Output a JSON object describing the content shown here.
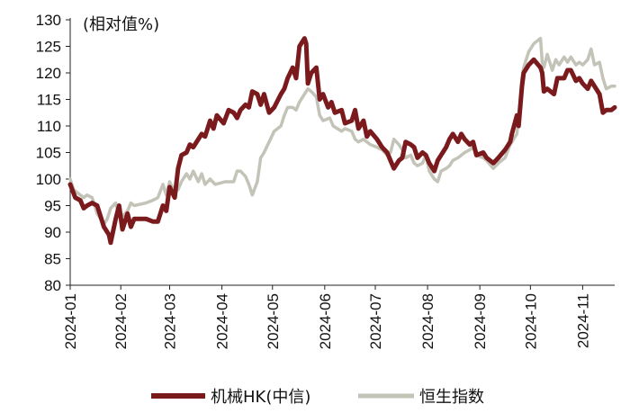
{
  "chart_data": {
    "type": "line",
    "unit_label": "(相对值%)",
    "ylim": [
      80,
      130
    ],
    "yticks": [
      80,
      85,
      90,
      95,
      100,
      105,
      110,
      115,
      120,
      125,
      130
    ],
    "xlim": [
      "2024-01-02",
      "2024-11-20"
    ],
    "x_ticks": [
      {
        "label": "2024-01",
        "date": "2024-01-02"
      },
      {
        "label": "2024-02",
        "date": "2024-02-01"
      },
      {
        "label": "2024-03",
        "date": "2024-03-01"
      },
      {
        "label": "2024-04",
        "date": "2024-04-01"
      },
      {
        "label": "2024-05",
        "date": "2024-05-01"
      },
      {
        "label": "2024-06",
        "date": "2024-06-01"
      },
      {
        "label": "2024-07",
        "date": "2024-07-01"
      },
      {
        "label": "2024-08",
        "date": "2024-08-01"
      },
      {
        "label": "2024-09",
        "date": "2024-09-01"
      },
      {
        "label": "2024-10",
        "date": "2024-10-01"
      },
      {
        "label": "2024-11",
        "date": "2024-11-01"
      }
    ],
    "grid": false,
    "legend_position": "bottom",
    "series": [
      {
        "name": "机械HK(中信)",
        "color": "#7b1a1c",
        "points": [
          [
            "2024-01-02",
            99
          ],
          [
            "2024-01-05",
            96.5
          ],
          [
            "2024-01-08",
            96
          ],
          [
            "2024-01-10",
            94.5
          ],
          [
            "2024-01-12",
            95
          ],
          [
            "2024-01-15",
            95.5
          ],
          [
            "2024-01-18",
            95
          ],
          [
            "2024-01-22",
            91
          ],
          [
            "2024-01-25",
            89.5
          ],
          [
            "2024-01-26",
            88
          ],
          [
            "2024-01-29",
            92.5
          ],
          [
            "2024-01-31",
            95
          ],
          [
            "2024-02-02",
            90.5
          ],
          [
            "2024-02-05",
            93.5
          ],
          [
            "2024-02-07",
            91
          ],
          [
            "2024-02-09",
            92.5
          ],
          [
            "2024-02-16",
            92.5
          ],
          [
            "2024-02-20",
            92
          ],
          [
            "2024-02-23",
            92
          ],
          [
            "2024-02-26",
            95
          ],
          [
            "2024-02-28",
            94
          ],
          [
            "2024-03-01",
            98.5
          ],
          [
            "2024-03-04",
            96.5
          ],
          [
            "2024-03-06",
            102
          ],
          [
            "2024-03-08",
            104.5
          ],
          [
            "2024-03-11",
            105
          ],
          [
            "2024-03-13",
            106.5
          ],
          [
            "2024-03-15",
            106
          ],
          [
            "2024-03-18",
            107.5
          ],
          [
            "2024-03-20",
            108.5
          ],
          [
            "2024-03-22",
            108
          ],
          [
            "2024-03-25",
            111
          ],
          [
            "2024-03-27",
            109.5
          ],
          [
            "2024-03-29",
            112
          ],
          [
            "2024-04-02",
            110.5
          ],
          [
            "2024-04-05",
            113
          ],
          [
            "2024-04-08",
            112.5
          ],
          [
            "2024-04-10",
            111.5
          ],
          [
            "2024-04-12",
            113
          ],
          [
            "2024-04-15",
            114
          ],
          [
            "2024-04-17",
            113.5
          ],
          [
            "2024-04-19",
            116.5
          ],
          [
            "2024-04-22",
            116
          ],
          [
            "2024-04-24",
            114
          ],
          [
            "2024-04-26",
            116
          ],
          [
            "2024-04-29",
            112.5
          ],
          [
            "2024-05-02",
            113.5
          ],
          [
            "2024-05-06",
            116
          ],
          [
            "2024-05-08",
            117
          ],
          [
            "2024-05-10",
            119
          ],
          [
            "2024-05-13",
            121
          ],
          [
            "2024-05-15",
            119
          ],
          [
            "2024-05-17",
            125
          ],
          [
            "2024-05-20",
            126.5
          ],
          [
            "2024-05-21",
            125.5
          ],
          [
            "2024-05-22",
            118
          ],
          [
            "2024-05-24",
            120
          ],
          [
            "2024-05-27",
            121
          ],
          [
            "2024-05-29",
            115
          ],
          [
            "2024-05-31",
            116
          ],
          [
            "2024-06-03",
            113.5
          ],
          [
            "2024-06-05",
            114.5
          ],
          [
            "2024-06-07",
            112.5
          ],
          [
            "2024-06-11",
            113
          ],
          [
            "2024-06-13",
            110.5
          ],
          [
            "2024-06-17",
            111
          ],
          [
            "2024-06-19",
            113
          ],
          [
            "2024-06-21",
            109.5
          ],
          [
            "2024-06-24",
            111
          ],
          [
            "2024-06-26",
            108
          ],
          [
            "2024-06-28",
            109
          ],
          [
            "2024-07-02",
            107.5
          ],
          [
            "2024-07-05",
            106
          ],
          [
            "2024-07-08",
            105
          ],
          [
            "2024-07-10",
            103.5
          ],
          [
            "2024-07-12",
            102
          ],
          [
            "2024-07-15",
            103.5
          ],
          [
            "2024-07-17",
            104
          ],
          [
            "2024-07-19",
            107
          ],
          [
            "2024-07-22",
            106.5
          ],
          [
            "2024-07-24",
            106
          ],
          [
            "2024-07-26",
            104
          ],
          [
            "2024-07-29",
            105
          ],
          [
            "2024-07-31",
            104.5
          ],
          [
            "2024-08-02",
            103
          ],
          [
            "2024-08-05",
            101.5
          ],
          [
            "2024-08-07",
            103.5
          ],
          [
            "2024-08-09",
            104.5
          ],
          [
            "2024-08-12",
            106
          ],
          [
            "2024-08-14",
            107.5
          ],
          [
            "2024-08-16",
            108.5
          ],
          [
            "2024-08-19",
            107
          ],
          [
            "2024-08-21",
            108.5
          ],
          [
            "2024-08-23",
            107.5
          ],
          [
            "2024-08-26",
            106.5
          ],
          [
            "2024-08-28",
            107
          ],
          [
            "2024-08-30",
            104.5
          ],
          [
            "2024-09-03",
            105
          ],
          [
            "2024-09-05",
            104
          ],
          [
            "2024-09-09",
            103
          ],
          [
            "2024-09-12",
            104
          ],
          [
            "2024-09-16",
            105.5
          ],
          [
            "2024-09-19",
            107
          ],
          [
            "2024-09-20",
            108.5
          ],
          [
            "2024-09-23",
            112
          ],
          [
            "2024-09-24",
            110
          ],
          [
            "2024-09-26",
            117.5
          ],
          [
            "2024-09-27",
            120
          ],
          [
            "2024-09-30",
            121.5
          ],
          [
            "2024-10-03",
            122.5
          ],
          [
            "2024-10-07",
            121
          ],
          [
            "2024-10-08",
            120
          ],
          [
            "2024-10-09",
            116.5
          ],
          [
            "2024-10-11",
            117
          ],
          [
            "2024-10-15",
            116
          ],
          [
            "2024-10-17",
            119
          ],
          [
            "2024-10-21",
            119
          ],
          [
            "2024-10-23",
            120.5
          ],
          [
            "2024-10-25",
            120.5
          ],
          [
            "2024-10-28",
            118.5
          ],
          [
            "2024-10-30",
            119
          ],
          [
            "2024-11-01",
            118
          ],
          [
            "2024-11-04",
            117
          ],
          [
            "2024-11-06",
            118.5
          ],
          [
            "2024-11-08",
            117.5
          ],
          [
            "2024-11-11",
            116
          ],
          [
            "2024-11-13",
            112.5
          ],
          [
            "2024-11-15",
            113
          ],
          [
            "2024-11-18",
            113
          ],
          [
            "2024-11-20",
            113.5
          ]
        ]
      },
      {
        "name": "恒生指数",
        "color": "#c3c3b8",
        "points": [
          [
            "2024-01-02",
            100
          ],
          [
            "2024-01-04",
            98
          ],
          [
            "2024-01-08",
            97
          ],
          [
            "2024-01-10",
            96.5
          ],
          [
            "2024-01-12",
            97
          ],
          [
            "2024-01-15",
            96.5
          ],
          [
            "2024-01-18",
            93.5
          ],
          [
            "2024-01-22",
            91.5
          ],
          [
            "2024-01-24",
            92.5
          ],
          [
            "2024-01-26",
            94.5
          ],
          [
            "2024-01-29",
            95.5
          ],
          [
            "2024-01-31",
            93
          ],
          [
            "2024-02-02",
            93
          ],
          [
            "2024-02-05",
            94
          ],
          [
            "2024-02-07",
            95.5
          ],
          [
            "2024-02-09",
            95
          ],
          [
            "2024-02-16",
            95.5
          ],
          [
            "2024-02-20",
            96
          ],
          [
            "2024-02-23",
            96.5
          ],
          [
            "2024-02-26",
            99
          ],
          [
            "2024-02-28",
            97
          ],
          [
            "2024-03-01",
            99.5
          ],
          [
            "2024-03-04",
            97.5
          ],
          [
            "2024-03-06",
            98
          ],
          [
            "2024-03-08",
            99.5
          ],
          [
            "2024-03-11",
            101
          ],
          [
            "2024-03-13",
            100
          ],
          [
            "2024-03-15",
            101.5
          ],
          [
            "2024-03-18",
            99.5
          ],
          [
            "2024-03-20",
            101
          ],
          [
            "2024-03-22",
            99
          ],
          [
            "2024-03-25",
            100
          ],
          [
            "2024-03-28",
            99
          ],
          [
            "2024-04-03",
            99.5
          ],
          [
            "2024-04-08",
            99.5
          ],
          [
            "2024-04-10",
            101.5
          ],
          [
            "2024-04-12",
            101.5
          ],
          [
            "2024-04-15",
            100.5
          ],
          [
            "2024-04-17",
            99
          ],
          [
            "2024-04-19",
            97
          ],
          [
            "2024-04-22",
            99.5
          ],
          [
            "2024-04-24",
            104
          ],
          [
            "2024-04-26",
            105
          ],
          [
            "2024-04-29",
            107
          ],
          [
            "2024-05-02",
            109
          ],
          [
            "2024-05-06",
            110
          ],
          [
            "2024-05-08",
            112
          ],
          [
            "2024-05-10",
            113.5
          ],
          [
            "2024-05-13",
            113.5
          ],
          [
            "2024-05-15",
            113
          ],
          [
            "2024-05-17",
            114.5
          ],
          [
            "2024-05-20",
            116
          ],
          [
            "2024-05-22",
            117
          ],
          [
            "2024-05-24",
            116.5
          ],
          [
            "2024-05-27",
            115.5
          ],
          [
            "2024-05-29",
            112
          ],
          [
            "2024-05-31",
            111
          ],
          [
            "2024-06-04",
            111.5
          ],
          [
            "2024-06-06",
            110
          ],
          [
            "2024-06-11",
            109
          ],
          [
            "2024-06-13",
            109.5
          ],
          [
            "2024-06-17",
            109
          ],
          [
            "2024-06-19",
            107.5
          ],
          [
            "2024-06-21",
            107
          ],
          [
            "2024-06-24",
            107.5
          ],
          [
            "2024-06-26",
            107
          ],
          [
            "2024-06-28",
            106.5
          ],
          [
            "2024-07-02",
            106
          ],
          [
            "2024-07-05",
            105.5
          ],
          [
            "2024-07-08",
            104.5
          ],
          [
            "2024-07-10",
            105
          ],
          [
            "2024-07-12",
            107.5
          ],
          [
            "2024-07-15",
            106.5
          ],
          [
            "2024-07-17",
            105.5
          ],
          [
            "2024-07-19",
            104
          ],
          [
            "2024-07-22",
            104.5
          ],
          [
            "2024-07-24",
            103
          ],
          [
            "2024-07-26",
            102.5
          ],
          [
            "2024-07-29",
            103
          ],
          [
            "2024-07-31",
            104.5
          ],
          [
            "2024-08-02",
            101.5
          ],
          [
            "2024-08-05",
            100
          ],
          [
            "2024-08-07",
            99.5
          ],
          [
            "2024-08-09",
            101.5
          ],
          [
            "2024-08-12",
            102
          ],
          [
            "2024-08-14",
            102.5
          ],
          [
            "2024-08-16",
            103.5
          ],
          [
            "2024-08-19",
            104
          ],
          [
            "2024-08-21",
            104.5
          ],
          [
            "2024-08-23",
            105
          ],
          [
            "2024-08-26",
            105.5
          ],
          [
            "2024-08-28",
            106
          ],
          [
            "2024-08-30",
            104.5
          ],
          [
            "2024-09-03",
            104
          ],
          [
            "2024-09-05",
            103.5
          ],
          [
            "2024-09-09",
            102
          ],
          [
            "2024-09-12",
            103
          ],
          [
            "2024-09-16",
            104
          ],
          [
            "2024-09-19",
            106.5
          ],
          [
            "2024-09-23",
            108.5
          ],
          [
            "2024-09-24",
            112
          ],
          [
            "2024-09-25",
            115
          ],
          [
            "2024-09-26",
            119
          ],
          [
            "2024-09-27",
            121
          ],
          [
            "2024-09-30",
            124
          ],
          [
            "2024-10-03",
            125.5
          ],
          [
            "2024-10-07",
            126.5
          ],
          [
            "2024-10-08",
            122
          ],
          [
            "2024-10-09",
            121
          ],
          [
            "2024-10-11",
            123.5
          ],
          [
            "2024-10-14",
            120.5
          ],
          [
            "2024-10-16",
            122.5
          ],
          [
            "2024-10-18",
            121.5
          ],
          [
            "2024-10-21",
            123
          ],
          [
            "2024-10-23",
            122
          ],
          [
            "2024-10-25",
            123
          ],
          [
            "2024-10-28",
            121.5
          ],
          [
            "2024-10-30",
            122
          ],
          [
            "2024-11-01",
            121.5
          ],
          [
            "2024-11-04",
            122.5
          ],
          [
            "2024-11-06",
            124.5
          ],
          [
            "2024-11-08",
            121.5
          ],
          [
            "2024-11-11",
            122
          ],
          [
            "2024-11-13",
            119
          ],
          [
            "2024-11-15",
            117
          ],
          [
            "2024-11-18",
            117.5
          ],
          [
            "2024-11-20",
            117.5
          ]
        ]
      }
    ]
  }
}
